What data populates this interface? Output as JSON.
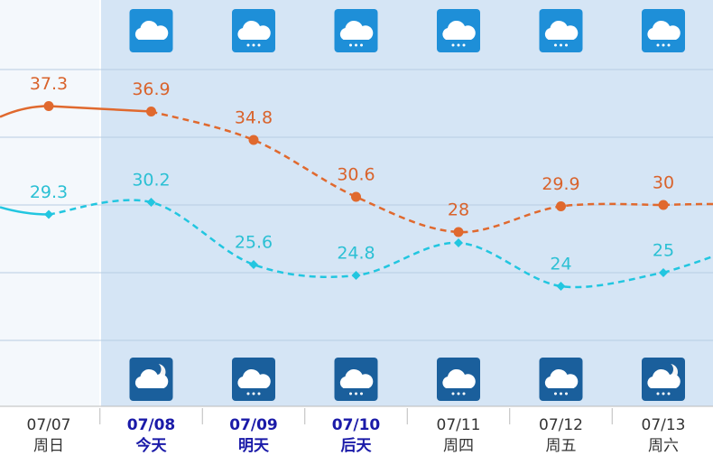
{
  "chart_data": {
    "type": "line",
    "categories": [
      "07/07",
      "07/08",
      "07/09",
      "07/10",
      "07/11",
      "07/12",
      "07/13"
    ],
    "day_labels": [
      "周日",
      "今天",
      "明天",
      "后天",
      "周四",
      "周五",
      "周六"
    ],
    "ylim": [
      20,
      40
    ],
    "yticks": [
      20,
      25,
      30,
      35,
      40
    ],
    "grid": true,
    "series": [
      {
        "color": "#e0692e",
        "values": [
          37.3,
          36.9,
          34.8,
          30.6,
          28,
          29.9,
          30
        ]
      },
      {
        "color": "#22c6e0",
        "values": [
          29.3,
          30.2,
          25.6,
          24.8,
          27.2,
          24,
          25
        ],
        "value_labels": [
          "29.3",
          "30.2",
          "25.6",
          "24.8",
          null,
          "24",
          "25"
        ]
      }
    ]
  }
}
